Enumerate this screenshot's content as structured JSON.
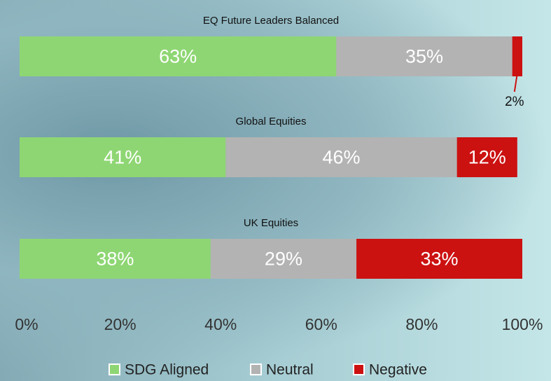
{
  "chart_data": {
    "type": "stacked-bar-horizontal",
    "categories": [
      "EQ Future Leaders Balanced",
      "Global Equities",
      "UK Equities"
    ],
    "series": [
      {
        "name": "SDG Aligned",
        "color": "#8ed673",
        "values": [
          63,
          41,
          38
        ],
        "value_labels": [
          "63%",
          "41%",
          "38%"
        ]
      },
      {
        "name": "Neutral",
        "color": "#b3b3b3",
        "values": [
          35,
          46,
          29
        ],
        "value_labels": [
          "35%",
          "46%",
          "29%"
        ]
      },
      {
        "name": "Negative",
        "color": "#cc1111",
        "values": [
          2,
          12,
          33
        ],
        "value_labels": [
          "2%",
          "12%",
          "33%"
        ]
      }
    ],
    "xlim": [
      0,
      100
    ],
    "xticks": [
      {
        "value": 0,
        "label": "0%"
      },
      {
        "value": 20,
        "label": "20%"
      },
      {
        "value": 40,
        "label": "40%"
      },
      {
        "value": 60,
        "label": "60%"
      },
      {
        "value": 80,
        "label": "80%"
      },
      {
        "value": 100,
        "label": "100%"
      }
    ],
    "legend": "bottom"
  }
}
